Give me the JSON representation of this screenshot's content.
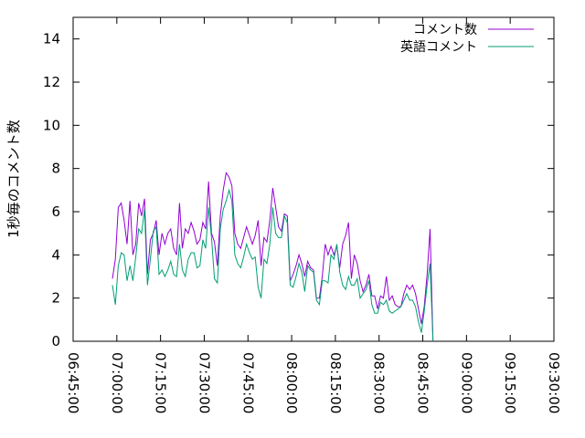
{
  "chart_data": {
    "type": "line",
    "title": "",
    "xlabel": "",
    "ylabel": "1秒毎のコメント数",
    "ylim": [
      0,
      15
    ],
    "y_ticks": [
      0,
      2,
      4,
      6,
      8,
      10,
      12,
      14
    ],
    "x_ticks": [
      "06:45:00",
      "07:00:00",
      "07:15:00",
      "07:30:00",
      "07:45:00",
      "08:00:00",
      "08:15:00",
      "08:30:00",
      "08:45:00",
      "09:00:00",
      "09:15:00",
      "09:30:00"
    ],
    "xlim": [
      "06:45:00",
      "09:30:00"
    ],
    "grid": false,
    "legend_position": "top-right",
    "series": [
      {
        "name": "コメント数",
        "color": "#9400d3",
        "points": [
          [
            "06:58:30",
            2.9
          ],
          [
            "06:59:30",
            3.8
          ],
          [
            "07:00:30",
            6.2
          ],
          [
            "07:01:30",
            6.4
          ],
          [
            "07:02:30",
            5.6
          ],
          [
            "07:03:30",
            4.5
          ],
          [
            "07:04:30",
            6.5
          ],
          [
            "07:05:30",
            4.0
          ],
          [
            "07:06:30",
            4.5
          ],
          [
            "07:07:30",
            6.4
          ],
          [
            "07:08:30",
            5.8
          ],
          [
            "07:09:30",
            6.6
          ],
          [
            "07:10:30",
            3.1
          ],
          [
            "07:11:30",
            4.7
          ],
          [
            "07:12:30",
            5.0
          ],
          [
            "07:13:30",
            5.6
          ],
          [
            "07:14:30",
            4.0
          ],
          [
            "07:15:30",
            5.0
          ],
          [
            "07:16:30",
            4.5
          ],
          [
            "07:17:30",
            5.0
          ],
          [
            "07:18:30",
            5.2
          ],
          [
            "07:19:30",
            4.3
          ],
          [
            "07:20:30",
            4.0
          ],
          [
            "07:21:30",
            6.4
          ],
          [
            "07:22:30",
            4.3
          ],
          [
            "07:23:30",
            5.2
          ],
          [
            "07:24:30",
            5.0
          ],
          [
            "07:25:30",
            5.5
          ],
          [
            "07:26:30",
            5.1
          ],
          [
            "07:27:30",
            4.5
          ],
          [
            "07:28:30",
            4.7
          ],
          [
            "07:29:30",
            5.5
          ],
          [
            "07:30:30",
            5.2
          ],
          [
            "07:31:30",
            7.4
          ],
          [
            "07:32:30",
            5.0
          ],
          [
            "07:33:30",
            4.6
          ],
          [
            "07:34:30",
            3.5
          ],
          [
            "07:35:30",
            5.8
          ],
          [
            "07:36:30",
            7.0
          ],
          [
            "07:37:30",
            7.8
          ],
          [
            "07:38:30",
            7.6
          ],
          [
            "07:39:30",
            7.2
          ],
          [
            "07:40:30",
            5.0
          ],
          [
            "07:41:30",
            4.5
          ],
          [
            "07:42:30",
            4.3
          ],
          [
            "07:43:30",
            4.8
          ],
          [
            "07:44:30",
            5.3
          ],
          [
            "07:45:30",
            4.9
          ],
          [
            "07:46:30",
            4.5
          ],
          [
            "07:47:30",
            4.9
          ],
          [
            "07:48:30",
            5.6
          ],
          [
            "07:49:30",
            3.5
          ],
          [
            "07:50:30",
            4.8
          ],
          [
            "07:51:30",
            4.6
          ],
          [
            "07:52:30",
            5.6
          ],
          [
            "07:53:30",
            7.1
          ],
          [
            "07:54:30",
            6.2
          ],
          [
            "07:55:30",
            5.3
          ],
          [
            "07:56:30",
            5.1
          ],
          [
            "07:57:30",
            5.9
          ],
          [
            "07:58:30",
            5.8
          ],
          [
            "07:59:30",
            2.8
          ],
          [
            "08:00:30",
            3.1
          ],
          [
            "08:01:30",
            3.5
          ],
          [
            "08:02:30",
            4.0
          ],
          [
            "08:03:30",
            3.6
          ],
          [
            "08:04:30",
            3.0
          ],
          [
            "08:05:30",
            3.7
          ],
          [
            "08:06:30",
            3.4
          ],
          [
            "08:07:30",
            3.3
          ],
          [
            "08:08:30",
            2.0
          ],
          [
            "08:09:30",
            2.0
          ],
          [
            "08:10:30",
            3.0
          ],
          [
            "08:11:30",
            4.5
          ],
          [
            "08:12:30",
            4.0
          ],
          [
            "08:13:30",
            4.4
          ],
          [
            "08:14:30",
            4.0
          ],
          [
            "08:15:30",
            4.4
          ],
          [
            "08:16:30",
            3.4
          ],
          [
            "08:17:30",
            4.5
          ],
          [
            "08:18:30",
            4.9
          ],
          [
            "08:19:30",
            5.5
          ],
          [
            "08:20:30",
            2.9
          ],
          [
            "08:21:30",
            4.0
          ],
          [
            "08:22:30",
            3.6
          ],
          [
            "08:23:30",
            2.8
          ],
          [
            "08:24:30",
            2.3
          ],
          [
            "08:25:30",
            2.6
          ],
          [
            "08:26:30",
            3.1
          ],
          [
            "08:27:30",
            2.1
          ],
          [
            "08:28:30",
            2.1
          ],
          [
            "08:29:30",
            1.5
          ],
          [
            "08:30:30",
            2.1
          ],
          [
            "08:31:30",
            2.0
          ],
          [
            "08:32:30",
            3.0
          ],
          [
            "08:33:30",
            1.9
          ],
          [
            "08:34:30",
            2.1
          ],
          [
            "08:35:30",
            1.7
          ],
          [
            "08:36:30",
            1.6
          ],
          [
            "08:37:30",
            1.6
          ],
          [
            "08:38:30",
            2.2
          ],
          [
            "08:39:30",
            2.6
          ],
          [
            "08:40:30",
            2.4
          ],
          [
            "08:41:30",
            2.6
          ],
          [
            "08:42:30",
            2.2
          ],
          [
            "08:43:30",
            1.5
          ],
          [
            "08:44:30",
            0.8
          ],
          [
            "08:45:30",
            1.6
          ],
          [
            "08:46:30",
            3.1
          ],
          [
            "08:47:30",
            5.2
          ],
          [
            "08:48:30",
            0.0
          ]
        ]
      },
      {
        "name": "英語コメント",
        "color": "#009e73",
        "points": [
          [
            "06:58:30",
            2.6
          ],
          [
            "06:59:30",
            1.7
          ],
          [
            "07:00:30",
            3.5
          ],
          [
            "07:01:30",
            4.1
          ],
          [
            "07:02:30",
            4.0
          ],
          [
            "07:03:30",
            2.8
          ],
          [
            "07:04:30",
            3.5
          ],
          [
            "07:05:30",
            2.8
          ],
          [
            "07:06:30",
            3.9
          ],
          [
            "07:07:30",
            5.2
          ],
          [
            "07:08:30",
            5.0
          ],
          [
            "07:09:30",
            6.1
          ],
          [
            "07:10:30",
            2.6
          ],
          [
            "07:11:30",
            3.8
          ],
          [
            "07:12:30",
            5.1
          ],
          [
            "07:13:30",
            5.3
          ],
          [
            "07:14:30",
            3.1
          ],
          [
            "07:15:30",
            3.3
          ],
          [
            "07:16:30",
            3.0
          ],
          [
            "07:17:30",
            3.3
          ],
          [
            "07:18:30",
            3.7
          ],
          [
            "07:19:30",
            3.1
          ],
          [
            "07:20:30",
            3.0
          ],
          [
            "07:21:30",
            4.5
          ],
          [
            "07:22:30",
            3.3
          ],
          [
            "07:23:30",
            3.0
          ],
          [
            "07:24:30",
            3.8
          ],
          [
            "07:25:30",
            4.1
          ],
          [
            "07:26:30",
            4.1
          ],
          [
            "07:27:30",
            3.4
          ],
          [
            "07:28:30",
            3.5
          ],
          [
            "07:29:30",
            4.7
          ],
          [
            "07:30:30",
            4.3
          ],
          [
            "07:31:30",
            6.2
          ],
          [
            "07:32:30",
            4.8
          ],
          [
            "07:33:30",
            2.9
          ],
          [
            "07:34:30",
            2.7
          ],
          [
            "07:35:30",
            5.2
          ],
          [
            "07:36:30",
            6.1
          ],
          [
            "07:37:30",
            6.5
          ],
          [
            "07:38:30",
            7.0
          ],
          [
            "07:39:30",
            6.5
          ],
          [
            "07:40:30",
            4.0
          ],
          [
            "07:41:30",
            3.6
          ],
          [
            "07:42:30",
            3.4
          ],
          [
            "07:43:30",
            3.9
          ],
          [
            "07:44:30",
            4.5
          ],
          [
            "07:45:30",
            4.1
          ],
          [
            "07:46:30",
            3.8
          ],
          [
            "07:47:30",
            3.9
          ],
          [
            "07:48:30",
            2.5
          ],
          [
            "07:49:30",
            2.0
          ],
          [
            "07:50:30",
            3.8
          ],
          [
            "07:51:30",
            3.6
          ],
          [
            "07:52:30",
            4.5
          ],
          [
            "07:53:30",
            6.2
          ],
          [
            "07:54:30",
            5.0
          ],
          [
            "07:55:30",
            4.8
          ],
          [
            "07:56:30",
            4.8
          ],
          [
            "07:57:30",
            5.8
          ],
          [
            "07:58:30",
            5.5
          ],
          [
            "07:59:30",
            2.6
          ],
          [
            "08:00:30",
            2.5
          ],
          [
            "08:01:30",
            3.0
          ],
          [
            "08:02:30",
            3.6
          ],
          [
            "08:03:30",
            3.2
          ],
          [
            "08:04:30",
            2.3
          ],
          [
            "08:05:30",
            3.5
          ],
          [
            "08:06:30",
            3.3
          ],
          [
            "08:07:30",
            3.2
          ],
          [
            "08:08:30",
            1.9
          ],
          [
            "08:09:30",
            1.7
          ],
          [
            "08:10:30",
            2.8
          ],
          [
            "08:11:30",
            2.8
          ],
          [
            "08:12:30",
            2.7
          ],
          [
            "08:13:30",
            4.0
          ],
          [
            "08:14:30",
            3.8
          ],
          [
            "08:15:30",
            4.5
          ],
          [
            "08:16:30",
            3.2
          ],
          [
            "08:17:30",
            2.6
          ],
          [
            "08:18:30",
            2.4
          ],
          [
            "08:19:30",
            3.0
          ],
          [
            "08:20:30",
            2.6
          ],
          [
            "08:21:30",
            2.6
          ],
          [
            "08:22:30",
            2.9
          ],
          [
            "08:23:30",
            2.0
          ],
          [
            "08:24:30",
            2.2
          ],
          [
            "08:25:30",
            2.4
          ],
          [
            "08:26:30",
            2.8
          ],
          [
            "08:27:30",
            1.7
          ],
          [
            "08:28:30",
            1.3
          ],
          [
            "08:29:30",
            1.3
          ],
          [
            "08:30:30",
            1.8
          ],
          [
            "08:31:30",
            1.7
          ],
          [
            "08:32:30",
            1.9
          ],
          [
            "08:33:30",
            1.4
          ],
          [
            "08:34:30",
            1.3
          ],
          [
            "08:35:30",
            1.4
          ],
          [
            "08:36:30",
            1.5
          ],
          [
            "08:37:30",
            1.6
          ],
          [
            "08:38:30",
            1.9
          ],
          [
            "08:39:30",
            2.2
          ],
          [
            "08:40:30",
            1.9
          ],
          [
            "08:41:30",
            1.9
          ],
          [
            "08:42:30",
            1.6
          ],
          [
            "08:43:30",
            0.9
          ],
          [
            "08:44:30",
            0.4
          ],
          [
            "08:45:30",
            1.4
          ],
          [
            "08:46:30",
            2.6
          ],
          [
            "08:47:30",
            3.6
          ],
          [
            "08:48:30",
            0.0
          ]
        ]
      }
    ]
  }
}
